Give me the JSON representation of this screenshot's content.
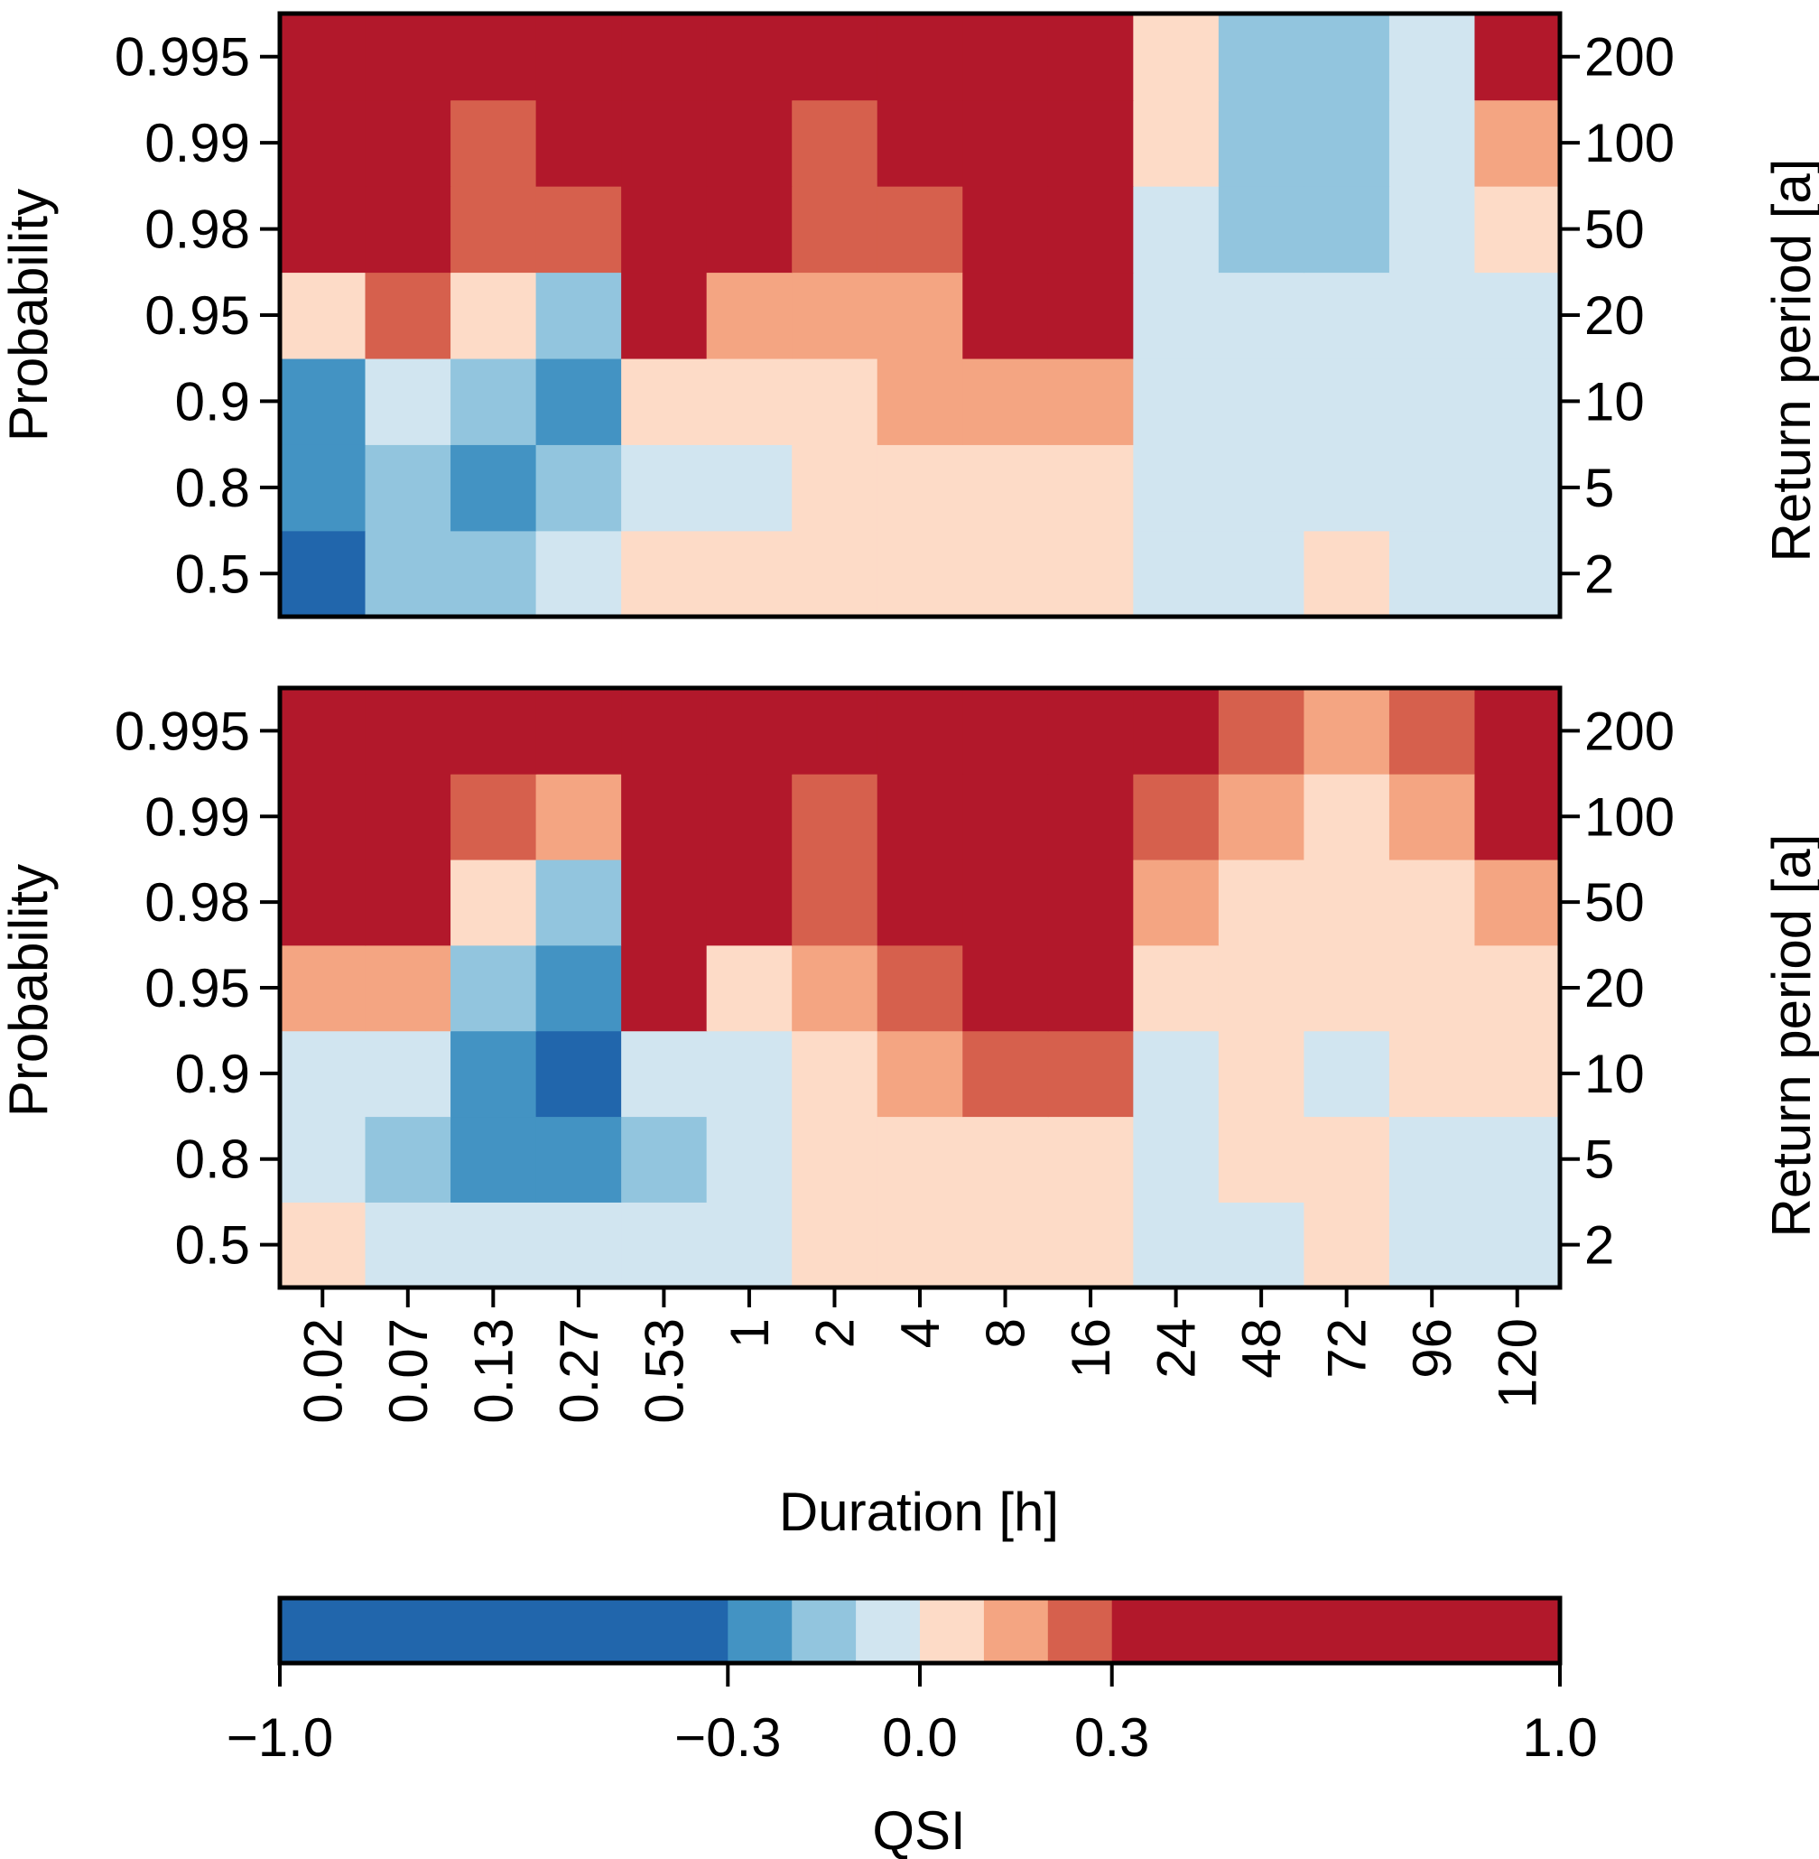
{
  "chart_data": [
    {
      "type": "heatmap",
      "panel": "top",
      "xlabel": "Duration [h]",
      "ylabel_left": "Probability",
      "ylabel_right": "Return period [a]",
      "x_categories": [
        "0.02",
        "0.07",
        "0.13",
        "0.27",
        "0.53",
        "1",
        "2",
        "4",
        "8",
        "16",
        "24",
        "48",
        "72",
        "96",
        "120"
      ],
      "y_categories": [
        "0.5",
        "0.8",
        "0.9",
        "0.95",
        "0.98",
        "0.99",
        "0.995"
      ],
      "y_right_categories": [
        "2",
        "5",
        "10",
        "20",
        "50",
        "100",
        "200"
      ],
      "values": [
        [
          -0.4,
          -0.15,
          -0.15,
          -0.05,
          0.05,
          0.05,
          0.05,
          0.05,
          0.05,
          0.05,
          -0.05,
          -0.05,
          0.05,
          -0.05,
          -0.05
        ],
        [
          -0.25,
          -0.15,
          -0.25,
          -0.15,
          -0.05,
          -0.05,
          0.05,
          0.05,
          0.05,
          0.05,
          -0.05,
          -0.05,
          -0.05,
          -0.05,
          -0.05
        ],
        [
          -0.25,
          -0.05,
          -0.15,
          -0.25,
          0.05,
          0.05,
          0.05,
          0.15,
          0.15,
          0.15,
          -0.05,
          -0.05,
          -0.05,
          -0.05,
          -0.05
        ],
        [
          0.05,
          0.25,
          0.05,
          -0.15,
          0.4,
          0.15,
          0.15,
          0.15,
          0.4,
          0.4,
          -0.05,
          -0.05,
          -0.05,
          -0.05,
          -0.05
        ],
        [
          0.4,
          0.4,
          0.25,
          0.25,
          0.4,
          0.4,
          0.25,
          0.25,
          0.4,
          0.4,
          -0.05,
          -0.15,
          -0.15,
          -0.05,
          0.05
        ],
        [
          0.4,
          0.4,
          0.25,
          0.4,
          0.4,
          0.4,
          0.25,
          0.4,
          0.4,
          0.4,
          0.05,
          -0.15,
          -0.15,
          -0.05,
          0.15
        ],
        [
          0.4,
          0.4,
          0.4,
          0.4,
          0.4,
          0.4,
          0.4,
          0.4,
          0.4,
          0.4,
          0.05,
          -0.15,
          -0.15,
          -0.05,
          0.4
        ]
      ]
    },
    {
      "type": "heatmap",
      "panel": "bottom",
      "xlabel": "Duration [h]",
      "ylabel_left": "Probability",
      "ylabel_right": "Return period [a]",
      "x_categories": [
        "0.02",
        "0.07",
        "0.13",
        "0.27",
        "0.53",
        "1",
        "2",
        "4",
        "8",
        "16",
        "24",
        "48",
        "72",
        "96",
        "120"
      ],
      "y_categories": [
        "0.5",
        "0.8",
        "0.9",
        "0.95",
        "0.98",
        "0.99",
        "0.995"
      ],
      "y_right_categories": [
        "2",
        "5",
        "10",
        "20",
        "50",
        "100",
        "200"
      ],
      "values": [
        [
          0.05,
          -0.05,
          -0.05,
          -0.05,
          -0.05,
          -0.05,
          0.05,
          0.05,
          0.05,
          0.05,
          -0.05,
          -0.05,
          0.05,
          -0.05,
          -0.05
        ],
        [
          -0.05,
          -0.15,
          -0.25,
          -0.25,
          -0.15,
          -0.05,
          0.05,
          0.05,
          0.05,
          0.05,
          -0.05,
          0.05,
          0.05,
          -0.05,
          -0.05
        ],
        [
          -0.05,
          -0.05,
          -0.25,
          -0.4,
          -0.05,
          -0.05,
          0.05,
          0.15,
          0.25,
          0.25,
          -0.05,
          0.05,
          -0.05,
          0.05,
          0.05
        ],
        [
          0.15,
          0.15,
          -0.15,
          -0.25,
          0.4,
          0.05,
          0.15,
          0.25,
          0.4,
          0.4,
          0.05,
          0.05,
          0.05,
          0.05,
          0.05
        ],
        [
          0.4,
          0.4,
          0.05,
          -0.15,
          0.4,
          0.4,
          0.25,
          0.4,
          0.4,
          0.4,
          0.15,
          0.05,
          0.05,
          0.05,
          0.15
        ],
        [
          0.4,
          0.4,
          0.25,
          0.15,
          0.4,
          0.4,
          0.25,
          0.4,
          0.4,
          0.4,
          0.25,
          0.15,
          0.05,
          0.15,
          0.4
        ],
        [
          0.4,
          0.4,
          0.4,
          0.4,
          0.4,
          0.4,
          0.4,
          0.4,
          0.4,
          0.4,
          0.4,
          0.25,
          0.15,
          0.25,
          0.4
        ]
      ]
    },
    {
      "type": "colorbar",
      "label": "QSI",
      "range": [
        -1.0,
        1.0
      ],
      "breaks": [
        -1.0,
        -0.3,
        -0.2,
        -0.1,
        0.0,
        0.1,
        0.2,
        0.3,
        1.0
      ],
      "colors": [
        "#2166ac",
        "#4393c3",
        "#92c5de",
        "#d1e5f0",
        "#fddbc7",
        "#f4a582",
        "#d6604d",
        "#b2182b"
      ],
      "tick_values": [
        -1.0,
        -0.3,
        0.0,
        0.3,
        1.0
      ],
      "tick_labels": [
        "−1.0",
        "−0.3",
        "0.0",
        "0.3",
        "1.0"
      ]
    }
  ]
}
